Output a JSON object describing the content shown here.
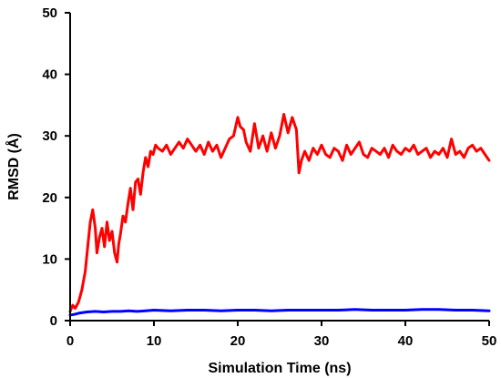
{
  "chart_data": {
    "type": "line",
    "title": "",
    "xlabel": "Simulation Time (ns)",
    "ylabel": "RMSD (Å)",
    "xlim": [
      0,
      50
    ],
    "ylim": [
      0,
      50
    ],
    "xticks": [
      0,
      10,
      20,
      30,
      40,
      50
    ],
    "yticks": [
      0,
      10,
      20,
      30,
      40,
      50
    ],
    "grid": false,
    "legend": "none",
    "series": [
      {
        "color": "#ff0000",
        "x": [
          0,
          0.3,
          0.6,
          1.0,
          1.4,
          1.8,
          2.1,
          2.4,
          2.7,
          3.0,
          3.2,
          3.5,
          3.8,
          4.1,
          4.4,
          4.7,
          5.0,
          5.3,
          5.6,
          5.8,
          6.0,
          6.3,
          6.6,
          6.9,
          7.2,
          7.5,
          7.8,
          8.1,
          8.4,
          8.7,
          9.0,
          9.3,
          9.6,
          9.9,
          10.2,
          10.5,
          11.0,
          11.5,
          12.0,
          12.5,
          13.0,
          13.5,
          14.0,
          14.5,
          15.0,
          15.5,
          16.0,
          16.5,
          17.0,
          17.5,
          18.0,
          18.5,
          19.0,
          19.5,
          20.0,
          20.3,
          20.7,
          21.0,
          21.5,
          22.0,
          22.5,
          23.0,
          23.5,
          24.0,
          24.5,
          25.0,
          25.5,
          26.0,
          26.5,
          27.0,
          27.3,
          27.6,
          28.0,
          28.5,
          29.0,
          29.5,
          30.0,
          30.5,
          31.0,
          31.5,
          32.0,
          32.5,
          33.0,
          33.5,
          34.0,
          34.5,
          35.0,
          35.5,
          36.0,
          36.5,
          37.0,
          37.5,
          38.0,
          38.5,
          39.0,
          39.5,
          40.0,
          40.5,
          41.0,
          41.5,
          42.0,
          42.5,
          43.0,
          43.5,
          44.0,
          44.5,
          45.0,
          45.5,
          46.0,
          46.5,
          47.0,
          47.5,
          48.0,
          48.5,
          49.0,
          49.5,
          50.0
        ],
        "values": [
          1.5,
          2.5,
          2.0,
          3.0,
          5.0,
          8.0,
          12.0,
          16.0,
          18.0,
          15.0,
          11.0,
          13.5,
          15.0,
          12.0,
          16.0,
          13.0,
          14.5,
          11.0,
          9.5,
          12.5,
          14.0,
          17.0,
          16.0,
          19.0,
          21.5,
          18.0,
          22.5,
          23.0,
          20.5,
          24.0,
          26.5,
          25.0,
          27.5,
          27.0,
          28.5,
          28.0,
          27.5,
          28.5,
          27.0,
          28.0,
          29.0,
          28.0,
          29.5,
          28.5,
          27.5,
          28.5,
          27.0,
          29.0,
          27.5,
          28.5,
          26.5,
          28.0,
          29.5,
          30.0,
          33.0,
          31.5,
          31.0,
          29.0,
          27.5,
          32.0,
          28.0,
          30.0,
          27.5,
          30.5,
          28.0,
          30.0,
          33.5,
          30.5,
          33.0,
          31.0,
          24.0,
          26.0,
          27.5,
          26.0,
          28.0,
          27.0,
          28.5,
          27.0,
          26.5,
          28.0,
          27.5,
          26.0,
          28.5,
          27.0,
          28.0,
          29.0,
          27.0,
          26.5,
          28.0,
          27.5,
          27.0,
          28.0,
          26.5,
          28.5,
          27.5,
          27.0,
          28.0,
          27.5,
          28.5,
          27.0,
          27.5,
          28.0,
          26.5,
          27.5,
          27.0,
          28.0,
          26.5,
          29.5,
          27.0,
          27.5,
          26.5,
          28.0,
          28.5,
          27.5,
          28.0,
          27.0,
          26.0
        ]
      },
      {
        "color": "#0000ff",
        "x": [
          0,
          0.5,
          1,
          2,
          3,
          4,
          5,
          6,
          7,
          8,
          9,
          10,
          12,
          14,
          16,
          18,
          20,
          22,
          24,
          26,
          28,
          30,
          32,
          34,
          36,
          38,
          40,
          42,
          44,
          46,
          48,
          50
        ],
        "values": [
          0.9,
          1.0,
          1.2,
          1.4,
          1.5,
          1.4,
          1.5,
          1.5,
          1.6,
          1.5,
          1.6,
          1.7,
          1.6,
          1.7,
          1.7,
          1.6,
          1.7,
          1.7,
          1.6,
          1.7,
          1.7,
          1.7,
          1.7,
          1.8,
          1.7,
          1.7,
          1.7,
          1.8,
          1.8,
          1.7,
          1.7,
          1.6
        ]
      }
    ]
  }
}
